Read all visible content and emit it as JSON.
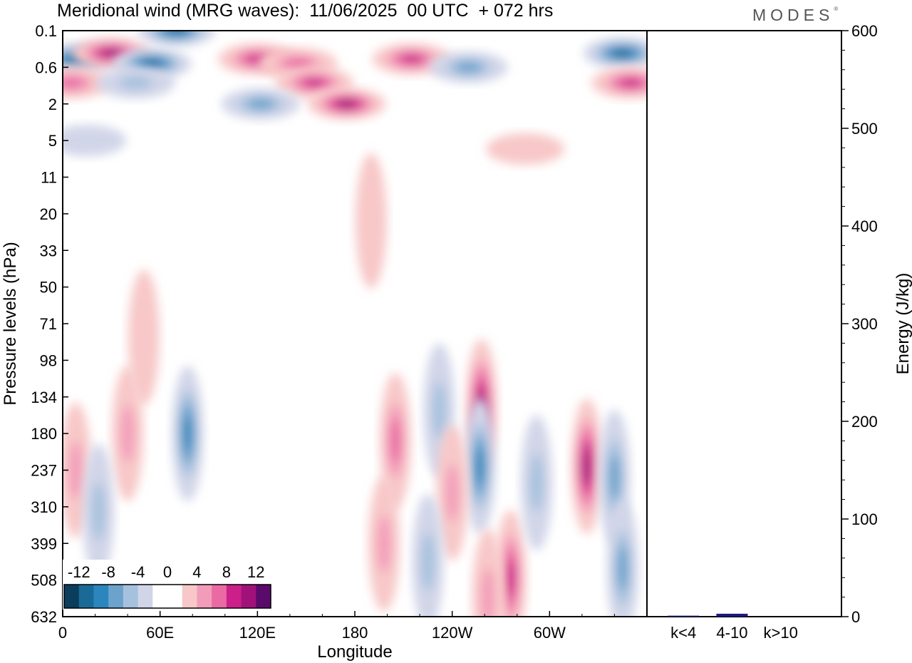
{
  "header": {
    "title": "Meridional wind (MRG waves):  11/06/2025  00 UTC  + 072 hrs",
    "logo": "MODES"
  },
  "colors": {
    "negative": [
      "#0b3d5c",
      "#1a6a98",
      "#2b86be",
      "#6ba3cc",
      "#a6c1de",
      "#d1d5e8"
    ],
    "zero": "#ffffff",
    "positive": [
      "#f8c8c8",
      "#f39cba",
      "#ea6aa4",
      "#cb1f8a",
      "#a0127a",
      "#5a0a6b"
    ],
    "bar": "#1a1a7e"
  },
  "chart_data": [
    {
      "type": "heatmap",
      "title": "Meridional wind (MRG waves):  11/06/2025  00 UTC  + 072 hrs",
      "xlabel": "Longitude",
      "ylabel": "Pressure levels (hPa)",
      "x_ticks": [
        "0",
        "60E",
        "120E",
        "180",
        "120W",
        "60W"
      ],
      "y_ticks": [
        "0.1",
        "0.6",
        "2",
        "5",
        "11",
        "20",
        "33",
        "50",
        "71",
        "98",
        "134",
        "180",
        "237",
        "310",
        "399",
        "508",
        "632"
      ],
      "colorbar": {
        "labels": [
          "-12",
          "-8",
          "-4",
          "0",
          "4",
          "8",
          "12"
        ],
        "levels": [
          -14,
          -12,
          -10,
          -8,
          -6,
          -4,
          -2,
          2,
          4,
          6,
          8,
          10,
          12,
          14
        ]
      },
      "features": [
        {
          "lon": 8,
          "level": 0.4,
          "value": -14
        },
        {
          "lon": 30,
          "level": 0.3,
          "value": 14
        },
        {
          "lon": 55,
          "level": 0.5,
          "value": -12
        },
        {
          "lon": 70,
          "level": 0.1,
          "value": -14
        },
        {
          "lon": 120,
          "level": 0.4,
          "value": 10
        },
        {
          "lon": 145,
          "level": 0.5,
          "value": 8
        },
        {
          "lon": 155,
          "level": 1.0,
          "value": 10
        },
        {
          "lon": 175,
          "level": 2.0,
          "value": 14
        },
        {
          "lon": 122,
          "level": 2.0,
          "value": -8
        },
        {
          "lon": 215,
          "level": 0.4,
          "value": 10
        },
        {
          "lon": 250,
          "level": 0.6,
          "value": -8
        },
        {
          "lon": 345,
          "level": 0.3,
          "value": -14
        },
        {
          "lon": 350,
          "level": 1.0,
          "value": 10
        },
        {
          "lon": 5,
          "level": 1.0,
          "value": 8
        },
        {
          "lon": 45,
          "level": 1.0,
          "value": -6
        },
        {
          "lon": 15,
          "level": 5.0,
          "value": -3
        },
        {
          "lon": 77,
          "level": 180,
          "value": -10
        },
        {
          "lon": 40,
          "level": 180,
          "value": 6
        },
        {
          "lon": 8,
          "level": 237,
          "value": 6
        },
        {
          "lon": 22,
          "level": 320,
          "value": -6
        },
        {
          "lon": 205,
          "level": 190,
          "value": 8
        },
        {
          "lon": 198,
          "level": 400,
          "value": 6
        },
        {
          "lon": 232,
          "level": 150,
          "value": -6
        },
        {
          "lon": 258,
          "level": 145,
          "value": 12
        },
        {
          "lon": 257,
          "level": 230,
          "value": -10
        },
        {
          "lon": 240,
          "level": 280,
          "value": 6
        },
        {
          "lon": 225,
          "level": 450,
          "value": -6
        },
        {
          "lon": 276,
          "level": 500,
          "value": 10
        },
        {
          "lon": 292,
          "level": 260,
          "value": -6
        },
        {
          "lon": 323,
          "level": 230,
          "value": 12
        },
        {
          "lon": 340,
          "level": 250,
          "value": -8
        },
        {
          "lon": 345,
          "level": 470,
          "value": -8
        },
        {
          "lon": 262,
          "level": 560,
          "value": 6
        },
        {
          "lon": 190,
          "level": 22,
          "value": 3
        },
        {
          "lon": 285,
          "level": 6,
          "value": 3
        },
        {
          "lon": 50,
          "level": 80,
          "value": 3
        }
      ]
    },
    {
      "type": "bar",
      "categories": [
        "k<4",
        "4-10",
        "k>10"
      ],
      "values": [
        1,
        3,
        0
      ],
      "ylabel": "Energy (J/kg)",
      "ylim": [
        0,
        600
      ],
      "y_ticks": [
        "0",
        "100",
        "200",
        "300",
        "400",
        "500",
        "600"
      ]
    }
  ]
}
